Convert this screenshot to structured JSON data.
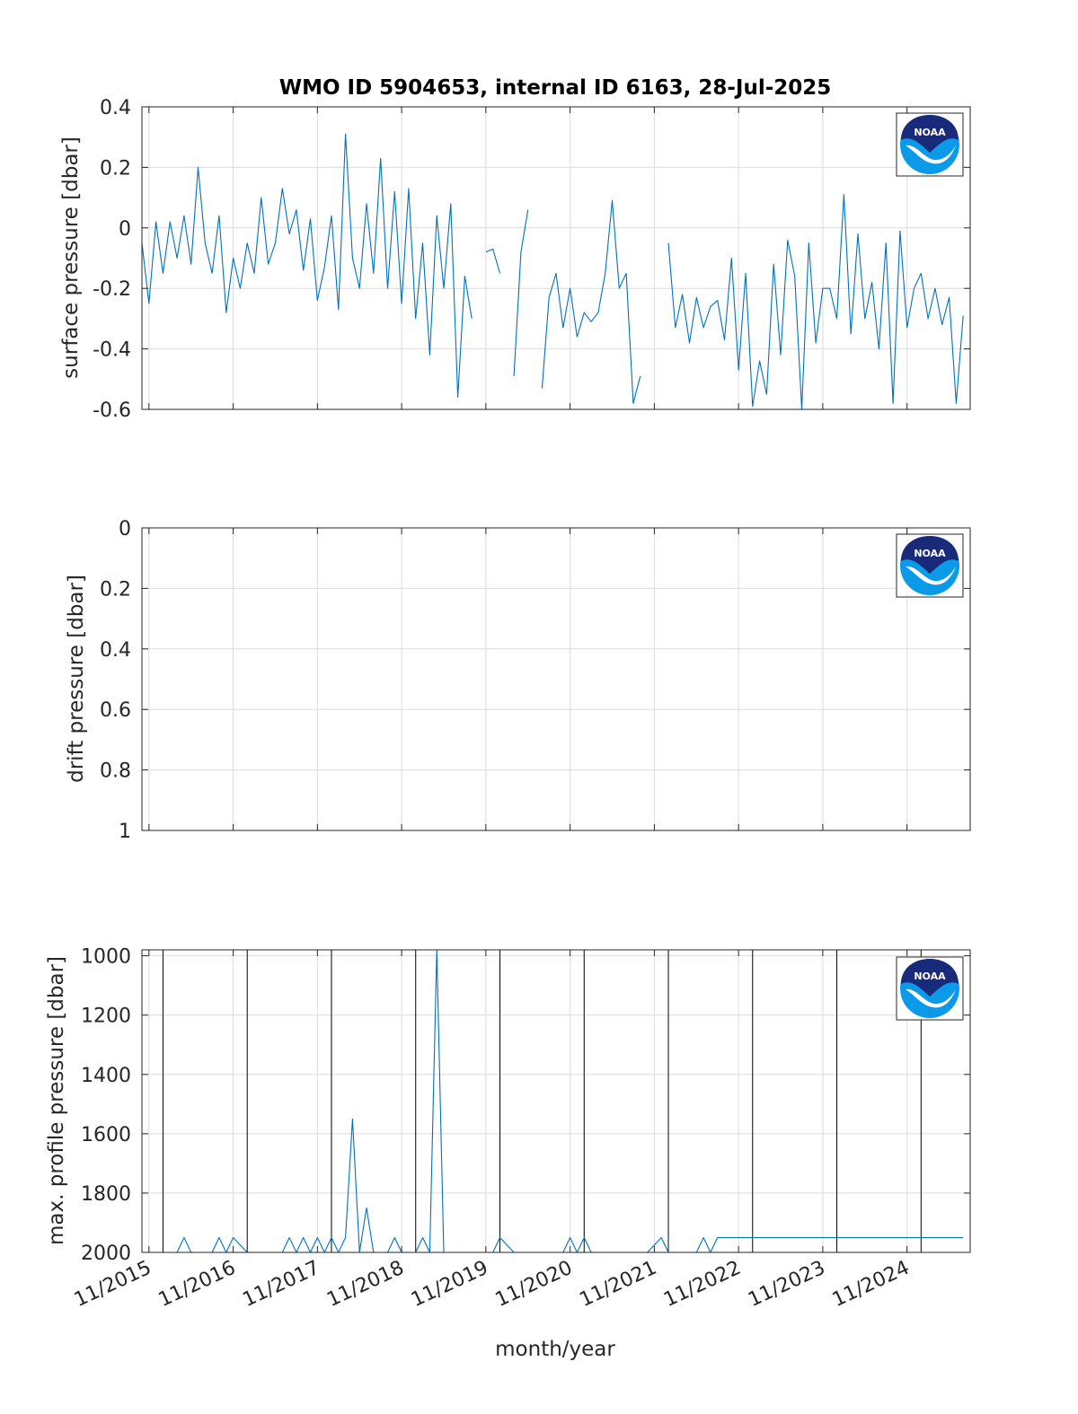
{
  "chart_data": [
    {
      "type": "line",
      "title": "WMO ID 5904653, internal ID 6163, 28-Jul-2025",
      "xlabel": "",
      "ylabel": "surface pressure [dbar]",
      "xlim": [
        "2015-10",
        "2025-08"
      ],
      "ylim": [
        -0.6,
        0.4
      ],
      "yticks": [
        "-0.6",
        "-0.4",
        "-0.2",
        "0",
        "0.2",
        "0.4"
      ],
      "grid": true,
      "logo": "noaa-logo",
      "series": [
        {
          "color": "#0072BD",
          "x": [
            "2015-10",
            "2015-11",
            "2015-12",
            "2016-01",
            "2016-02",
            "2016-03",
            "2016-04",
            "2016-05",
            "2016-06",
            "2016-07",
            "2016-08",
            "2016-09",
            "2016-10",
            "2016-11",
            "2016-12",
            "2017-01",
            "2017-02",
            "2017-03",
            "2017-04",
            "2017-05",
            "2017-06",
            "2017-07",
            "2017-08",
            "2017-09",
            "2017-10",
            "2017-11",
            "2017-12",
            "2018-01",
            "2018-02",
            "2018-03",
            "2018-04",
            "2018-05",
            "2018-06",
            "2018-07",
            "2018-08",
            "2018-09",
            "2018-10",
            "2018-11",
            "2018-12",
            "2019-01",
            "2019-02",
            "2019-03",
            "2019-04",
            "2019-05",
            "2019-06",
            "2019-07",
            "2019-08",
            "2019-09",
            "2019-10",
            "2019-11",
            "2019-12",
            "2020-01",
            "2020-02",
            "2020-03",
            "2020-04",
            "2020-05",
            "2020-06",
            "2020-07",
            "2020-08",
            "2020-09",
            "2020-10",
            "2020-11",
            "2020-12",
            "2021-01",
            "2021-02",
            "2021-03",
            "2021-04",
            "2021-05",
            "2021-06",
            "2021-07",
            "2021-08",
            "2021-09",
            "2021-10",
            "2021-11",
            "2021-12",
            "2022-01",
            "2022-02",
            "2022-03",
            "2022-04",
            "2022-05",
            "2022-06",
            "2022-07",
            "2022-08",
            "2022-09",
            "2022-10",
            "2022-11",
            "2022-12",
            "2023-01",
            "2023-02",
            "2023-03",
            "2023-04",
            "2023-05",
            "2023-06",
            "2023-07",
            "2023-08",
            "2023-09",
            "2023-10",
            "2023-11",
            "2023-12",
            "2024-01",
            "2024-02",
            "2024-03",
            "2024-04",
            "2024-05",
            "2024-06",
            "2024-07",
            "2024-08",
            "2024-09",
            "2024-10",
            "2024-11",
            "2024-12",
            "2025-01",
            "2025-02",
            "2025-03",
            "2025-04",
            "2025-05",
            "2025-06",
            "2025-07"
          ],
          "y": [
            -0.05,
            -0.25,
            0.02,
            -0.15,
            0.02,
            -0.1,
            0.04,
            -0.12,
            0.2,
            -0.05,
            -0.15,
            0.04,
            -0.28,
            -0.1,
            -0.2,
            -0.05,
            -0.15,
            0.1,
            -0.12,
            -0.05,
            0.13,
            -0.02,
            0.06,
            -0.14,
            0.03,
            -0.24,
            -0.13,
            0.04,
            -0.27,
            0.31,
            -0.1,
            -0.2,
            0.08,
            -0.15,
            0.23,
            -0.2,
            0.12,
            -0.25,
            0.13,
            -0.3,
            -0.05,
            -0.42,
            0.04,
            -0.2,
            0.08,
            -0.56,
            -0.16,
            -0.3,
            null,
            -0.08,
            -0.07,
            -0.15,
            null,
            -0.49,
            -0.08,
            0.06,
            null,
            -0.53,
            -0.23,
            -0.15,
            -0.33,
            -0.2,
            -0.36,
            -0.28,
            -0.31,
            -0.28,
            -0.15,
            0.09,
            -0.2,
            -0.15,
            -0.58,
            -0.49,
            null,
            null,
            null,
            -0.05,
            -0.33,
            -0.22,
            -0.38,
            -0.23,
            -0.33,
            -0.26,
            -0.24,
            -0.37,
            -0.1,
            -0.47,
            -0.15,
            -0.59,
            -0.44,
            -0.55,
            -0.12,
            -0.42,
            -0.04,
            -0.16,
            -0.6,
            -0.05,
            -0.38,
            -0.2,
            -0.2,
            -0.3,
            0.11,
            -0.35,
            -0.02,
            -0.3,
            -0.18,
            -0.4,
            -0.05,
            -0.58,
            -0.01,
            -0.33,
            -0.2,
            -0.15,
            -0.3,
            -0.2,
            -0.32,
            -0.23,
            -0.58,
            -0.29
          ]
        }
      ]
    },
    {
      "type": "line",
      "title": "",
      "xlabel": "",
      "ylabel": "drift pressure [dbar]",
      "xlim": [
        "2015-10",
        "2025-08"
      ],
      "ylim": [
        0,
        1
      ],
      "yticks": [
        "0",
        "0.2",
        "0.4",
        "0.6",
        "0.8",
        "1"
      ],
      "y_reversed": true,
      "grid": true,
      "logo": "noaa-logo",
      "series": []
    },
    {
      "type": "line",
      "title": "",
      "xlabel": "month/year",
      "ylabel": "max. profile pressure [dbar]",
      "xlim": [
        "2015-10",
        "2025-08"
      ],
      "ylim": [
        980,
        2000
      ],
      "yticks": [
        "1000",
        "1200",
        "1400",
        "1600",
        "1800",
        "2000"
      ],
      "y_reversed": true,
      "grid": true,
      "year_markers": [
        "2016-01",
        "2017-01",
        "2018-01",
        "2019-01",
        "2020-01",
        "2021-01",
        "2022-01",
        "2023-01",
        "2024-01",
        "2025-01"
      ],
      "logo": "noaa-logo",
      "xticks": [
        "11/2015",
        "11/2016",
        "11/2017",
        "11/2018",
        "11/2019",
        "11/2020",
        "11/2021",
        "11/2022",
        "11/2023",
        "11/2024"
      ],
      "series": [
        {
          "color": "#0072BD",
          "x": [
            "2015-10",
            "2015-11",
            "2016-01",
            "2016-03",
            "2016-04",
            "2016-05",
            "2016-07",
            "2016-08",
            "2016-09",
            "2016-10",
            "2016-11",
            "2017-01",
            "2017-03",
            "2017-05",
            "2017-06",
            "2017-07",
            "2017-08",
            "2017-09",
            "2017-10",
            "2017-11",
            "2017-12",
            "2018-01",
            "2018-02",
            "2018-03",
            "2018-04",
            "2018-05",
            "2018-06",
            "2018-07",
            "2018-08",
            "2018-09",
            "2018-10",
            "2018-11",
            "2018-12",
            "2019-01",
            "2019-02",
            "2019-03",
            "2019-04",
            "2019-05",
            "2019-06",
            "2019-07",
            "2019-08",
            "2019-09",
            "2019-10",
            "2019-11",
            "2019-12",
            "2020-01",
            "2020-03",
            "2020-05",
            "2020-06",
            "2020-07",
            "2020-08",
            "2020-09",
            "2020-10",
            "2020-11",
            "2020-12",
            "2021-01",
            "2021-02",
            "2021-04",
            "2021-06",
            "2021-08",
            "2021-10",
            "2021-12",
            "2022-01",
            "2022-02",
            "2022-03",
            "2022-04",
            "2022-05",
            "2022-06",
            "2022-07",
            "2022-08",
            "2022-09",
            "2022-11",
            "2023-01",
            "2023-04",
            "2023-07",
            "2023-10",
            "2024-01",
            "2024-04",
            "2024-07",
            "2024-10",
            "2025-01",
            "2025-04",
            "2025-07"
          ],
          "y": [
            2000,
            2000,
            2000,
            2000,
            1950,
            2000,
            2000,
            2000,
            1950,
            2000,
            1950,
            2000,
            2000,
            2000,
            2000,
            1950,
            2000,
            1950,
            2000,
            1950,
            2000,
            1950,
            2000,
            1950,
            1550,
            2000,
            1850,
            2000,
            2000,
            2000,
            1950,
            2000,
            2000,
            2000,
            1950,
            2000,
            980,
            2000,
            2000,
            2000,
            2000,
            2000,
            2000,
            2000,
            2000,
            1950,
            2000,
            2000,
            2000,
            2000,
            2000,
            2000,
            2000,
            1950,
            2000,
            1950,
            2000,
            2000,
            2000,
            2000,
            2000,
            1950,
            2000,
            2000,
            2000,
            2000,
            2000,
            1950,
            2000,
            1950,
            1950,
            1950,
            1950,
            1950,
            1950,
            1950,
            1950,
            1950,
            1950,
            1950,
            1950,
            1950,
            1950
          ]
        }
      ]
    }
  ]
}
